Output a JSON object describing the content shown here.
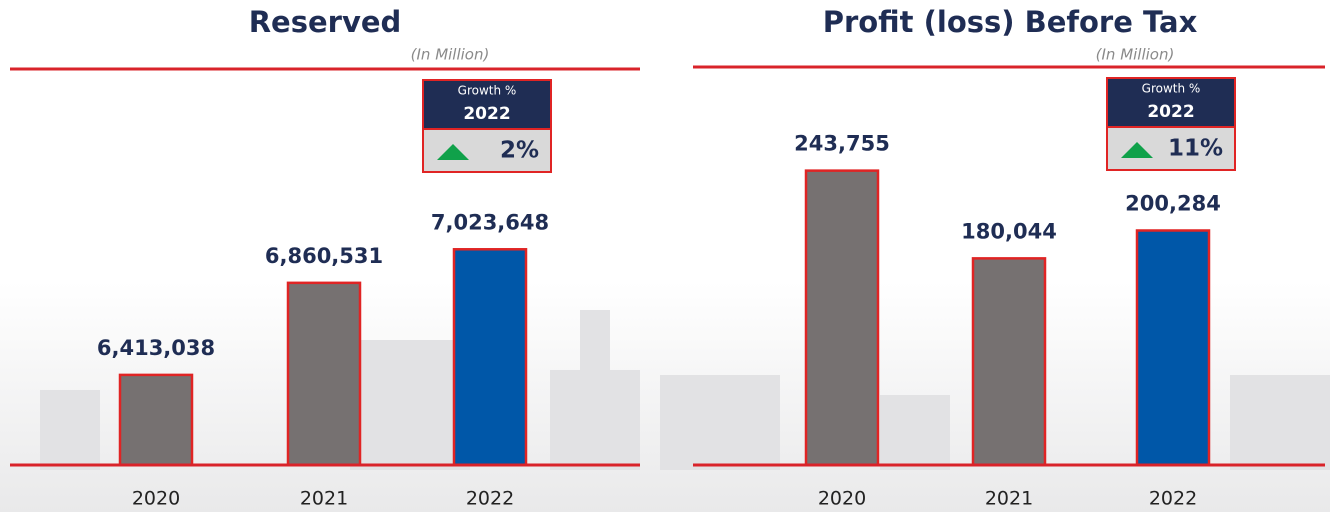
{
  "chart_data": [
    {
      "type": "bar",
      "title": "Reserved",
      "subtitle": "(In Million)",
      "categories": [
        "2020",
        "2021",
        "2022"
      ],
      "values": [
        6413038,
        6860531,
        7023648
      ],
      "value_labels": [
        "6,413,038",
        "6,860,531",
        "7,023,648"
      ],
      "colors": [
        "#767171",
        "#767171",
        "#0057a8"
      ],
      "ylim": [
        5975000,
        7900000
      ],
      "growth": {
        "title": "Growth %",
        "year": "2022",
        "value": "2%"
      }
    },
    {
      "type": "bar",
      "title": "Profit (loss) Before Tax",
      "subtitle": "(In Million)",
      "categories": [
        "2020",
        "2021",
        "2022"
      ],
      "values": [
        243755,
        180044,
        200284
      ],
      "value_labels": [
        "243,755",
        "180,044",
        "200,284"
      ],
      "colors": [
        "#767171",
        "#767171",
        "#0057a8"
      ],
      "ylim": [
        30000,
        319000
      ],
      "growth": {
        "title": "Growth %",
        "year": "2022",
        "value": "11%"
      }
    }
  ]
}
